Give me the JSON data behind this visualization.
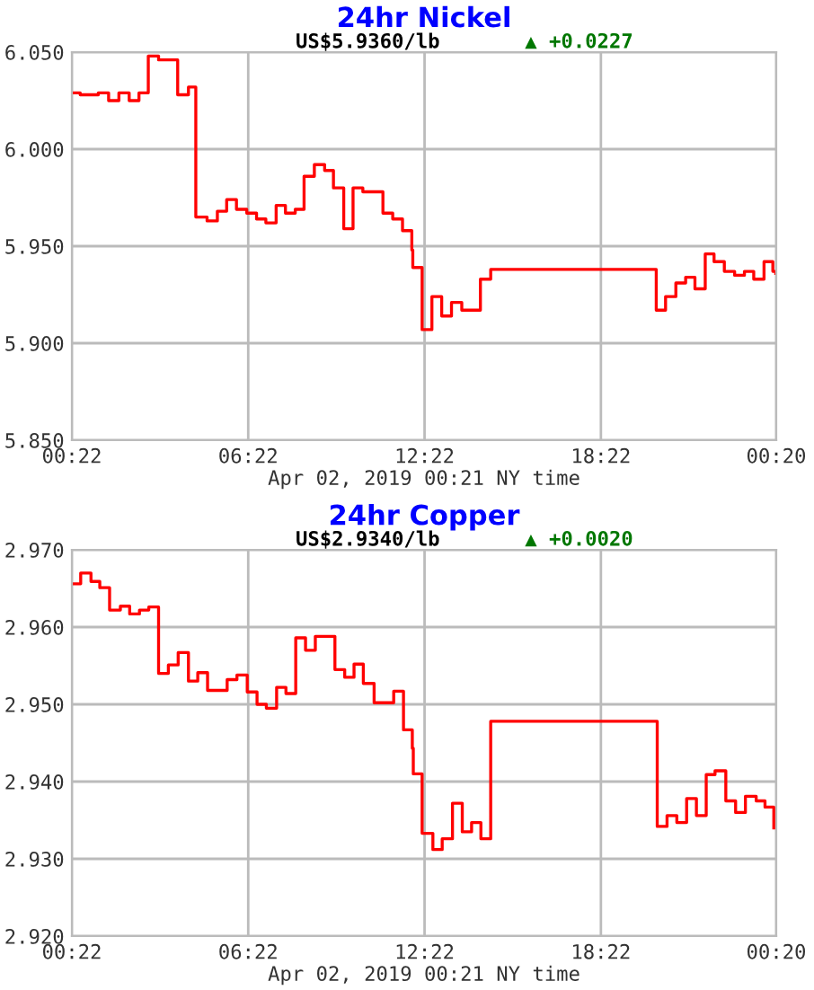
{
  "chart_data": [
    {
      "type": "step",
      "title": "24hr Nickel",
      "subtitle": "US$5.9360/lb",
      "annotations": [
        "▲ +0.0227"
      ],
      "xlabel": "Apr 02, 2019 00:21 NY time",
      "x": [
        "2019-04-01T00:22",
        "2019-04-01T00:39",
        "2019-04-01T01:16",
        "2019-04-01T01:37",
        "2019-04-01T01:58",
        "2019-04-01T02:19",
        "2019-04-01T02:39",
        "2019-04-01T02:58",
        "2019-04-01T03:19",
        "2019-04-01T03:58",
        "2019-04-01T04:20",
        "2019-04-01T04:35",
        "2019-04-01T04:58",
        "2019-04-01T05:19",
        "2019-04-01T05:38",
        "2019-04-01T05:58",
        "2019-04-01T06:19",
        "2019-04-01T06:39",
        "2019-04-01T06:58",
        "2019-04-01T07:19",
        "2019-04-01T07:38",
        "2019-04-01T07:58",
        "2019-04-01T08:16",
        "2019-04-01T08:37",
        "2019-04-01T08:58",
        "2019-04-01T09:16",
        "2019-04-01T09:37",
        "2019-04-01T09:56",
        "2019-04-01T10:16",
        "2019-04-01T10:57",
        "2019-04-01T11:17",
        "2019-04-01T11:37",
        "2019-04-01T11:56",
        "2019-04-01T11:58",
        "2019-04-01T12:17",
        "2019-04-01T12:37",
        "2019-04-01T12:57",
        "2019-04-01T13:17",
        "2019-04-01T13:38",
        "2019-04-01T14:16",
        "2019-04-01T14:37",
        "2019-04-01T20:15",
        "2019-04-01T20:34",
        "2019-04-01T20:55",
        "2019-04-01T21:15",
        "2019-04-01T21:34",
        "2019-04-01T21:55",
        "2019-04-01T22:13",
        "2019-04-01T22:34",
        "2019-04-01T22:55",
        "2019-04-01T23:15",
        "2019-04-01T23:34",
        "2019-04-01T23:55",
        "2019-04-02T00:13",
        "2019-04-02T00:19"
      ],
      "series": [
        {
          "color": "#ff0000",
          "values": [
            6.029,
            6.028,
            6.029,
            6.025,
            6.029,
            6.025,
            6.029,
            6.048,
            6.046,
            6.028,
            6.032,
            5.965,
            5.963,
            5.968,
            5.974,
            5.969,
            5.967,
            5.964,
            5.962,
            5.971,
            5.967,
            5.969,
            5.986,
            5.992,
            5.989,
            5.98,
            5.959,
            5.98,
            5.978,
            5.967,
            5.964,
            5.958,
            5.948,
            5.939,
            5.907,
            5.924,
            5.914,
            5.921,
            5.917,
            5.933,
            5.938,
            5.917,
            5.924,
            5.931,
            5.934,
            5.928,
            5.946,
            5.942,
            5.937,
            5.935,
            5.937,
            5.933,
            5.942,
            5.937,
            5.936
          ]
        }
      ],
      "xlim": [
        "2019-04-01T00:22",
        "2019-04-02T00:20"
      ],
      "xticks": [
        {
          "value": "2019-04-01T00:22",
          "label": "00:22"
        },
        {
          "value": "2019-04-01T06:22",
          "label": "06:22"
        },
        {
          "value": "2019-04-01T12:22",
          "label": "12:22"
        },
        {
          "value": "2019-04-01T18:22",
          "label": "18:22"
        },
        {
          "value": "2019-04-02T00:20",
          "label": "00:20"
        }
      ],
      "ylim": [
        5.85,
        6.05
      ],
      "yticks": [
        {
          "value": 5.85,
          "label": "5.850"
        },
        {
          "value": 5.9,
          "label": "5.900"
        },
        {
          "value": 5.95,
          "label": "5.950"
        },
        {
          "value": 6.0,
          "label": "6.000"
        },
        {
          "value": 6.05,
          "label": "6.050"
        }
      ],
      "grid": true,
      "legend": false
    },
    {
      "type": "step",
      "title": "24hr Copper",
      "subtitle": "US$2.9340/lb",
      "annotations": [
        "▲ +0.0020"
      ],
      "xlabel": "Apr 02, 2019 00:21 NY time",
      "x": [
        "2019-04-01T00:22",
        "2019-04-01T00:40",
        "2019-04-01T01:01",
        "2019-04-01T01:19",
        "2019-04-01T01:39",
        "2019-04-01T02:01",
        "2019-04-01T02:20",
        "2019-04-01T02:40",
        "2019-04-01T02:59",
        "2019-04-01T03:19",
        "2019-04-01T03:39",
        "2019-04-01T03:59",
        "2019-04-01T04:20",
        "2019-04-01T04:39",
        "2019-04-01T04:59",
        "2019-04-01T05:39",
        "2019-04-01T05:59",
        "2019-04-01T06:20",
        "2019-04-01T06:40",
        "2019-04-01T06:59",
        "2019-04-01T07:20",
        "2019-04-01T07:39",
        "2019-04-01T07:59",
        "2019-04-01T08:19",
        "2019-04-01T08:39",
        "2019-04-01T09:19",
        "2019-04-01T09:39",
        "2019-04-01T09:58",
        "2019-04-01T10:17",
        "2019-04-01T10:39",
        "2019-04-01T11:19",
        "2019-04-01T11:39",
        "2019-04-01T11:57",
        "2019-04-01T11:59",
        "2019-04-01T12:17",
        "2019-04-01T12:39",
        "2019-04-01T12:58",
        "2019-04-01T13:19",
        "2019-04-01T13:39",
        "2019-04-01T13:58",
        "2019-04-01T14:17",
        "2019-04-01T14:37",
        "2019-04-01T20:17",
        "2019-04-01T20:37",
        "2019-04-01T20:57",
        "2019-04-01T21:17",
        "2019-04-01T21:37",
        "2019-04-01T21:57",
        "2019-04-01T22:15",
        "2019-04-01T22:37",
        "2019-04-01T22:57",
        "2019-04-01T23:17",
        "2019-04-01T23:39",
        "2019-04-01T23:57",
        "2019-04-02T00:15"
      ],
      "series": [
        {
          "color": "#ff0000",
          "values": [
            2.9656,
            2.967,
            2.9659,
            2.9651,
            2.9622,
            2.9627,
            2.9617,
            2.9622,
            2.9626,
            2.954,
            2.9551,
            2.9567,
            2.953,
            2.9541,
            2.9518,
            2.9532,
            2.9538,
            2.9516,
            2.95,
            2.9495,
            2.9522,
            2.9514,
            2.9586,
            2.957,
            2.9588,
            2.9545,
            2.9535,
            2.9552,
            2.9527,
            2.9502,
            2.9517,
            2.9467,
            2.9443,
            2.941,
            2.9333,
            2.9312,
            2.9326,
            2.9372,
            2.9335,
            2.9347,
            2.9326,
            2.9478,
            2.9342,
            2.9356,
            2.9347,
            2.9378,
            2.9356,
            2.9409,
            2.9414,
            2.9375,
            2.936,
            2.9381,
            2.9375,
            2.9367,
            2.934
          ]
        }
      ],
      "xlim": [
        "2019-04-01T00:22",
        "2019-04-02T00:20"
      ],
      "xticks": [
        {
          "value": "2019-04-01T00:22",
          "label": "00:22"
        },
        {
          "value": "2019-04-01T06:22",
          "label": "06:22"
        },
        {
          "value": "2019-04-01T12:22",
          "label": "12:22"
        },
        {
          "value": "2019-04-01T18:22",
          "label": "18:22"
        },
        {
          "value": "2019-04-02T00:20",
          "label": "00:20"
        }
      ],
      "ylim": [
        2.92,
        2.97
      ],
      "yticks": [
        {
          "value": 2.92,
          "label": "2.920"
        },
        {
          "value": 2.93,
          "label": "2.930"
        },
        {
          "value": 2.94,
          "label": "2.940"
        },
        {
          "value": 2.95,
          "label": "2.950"
        },
        {
          "value": 2.96,
          "label": "2.960"
        },
        {
          "value": 2.97,
          "label": "2.970"
        }
      ],
      "grid": true,
      "legend": false
    }
  ]
}
